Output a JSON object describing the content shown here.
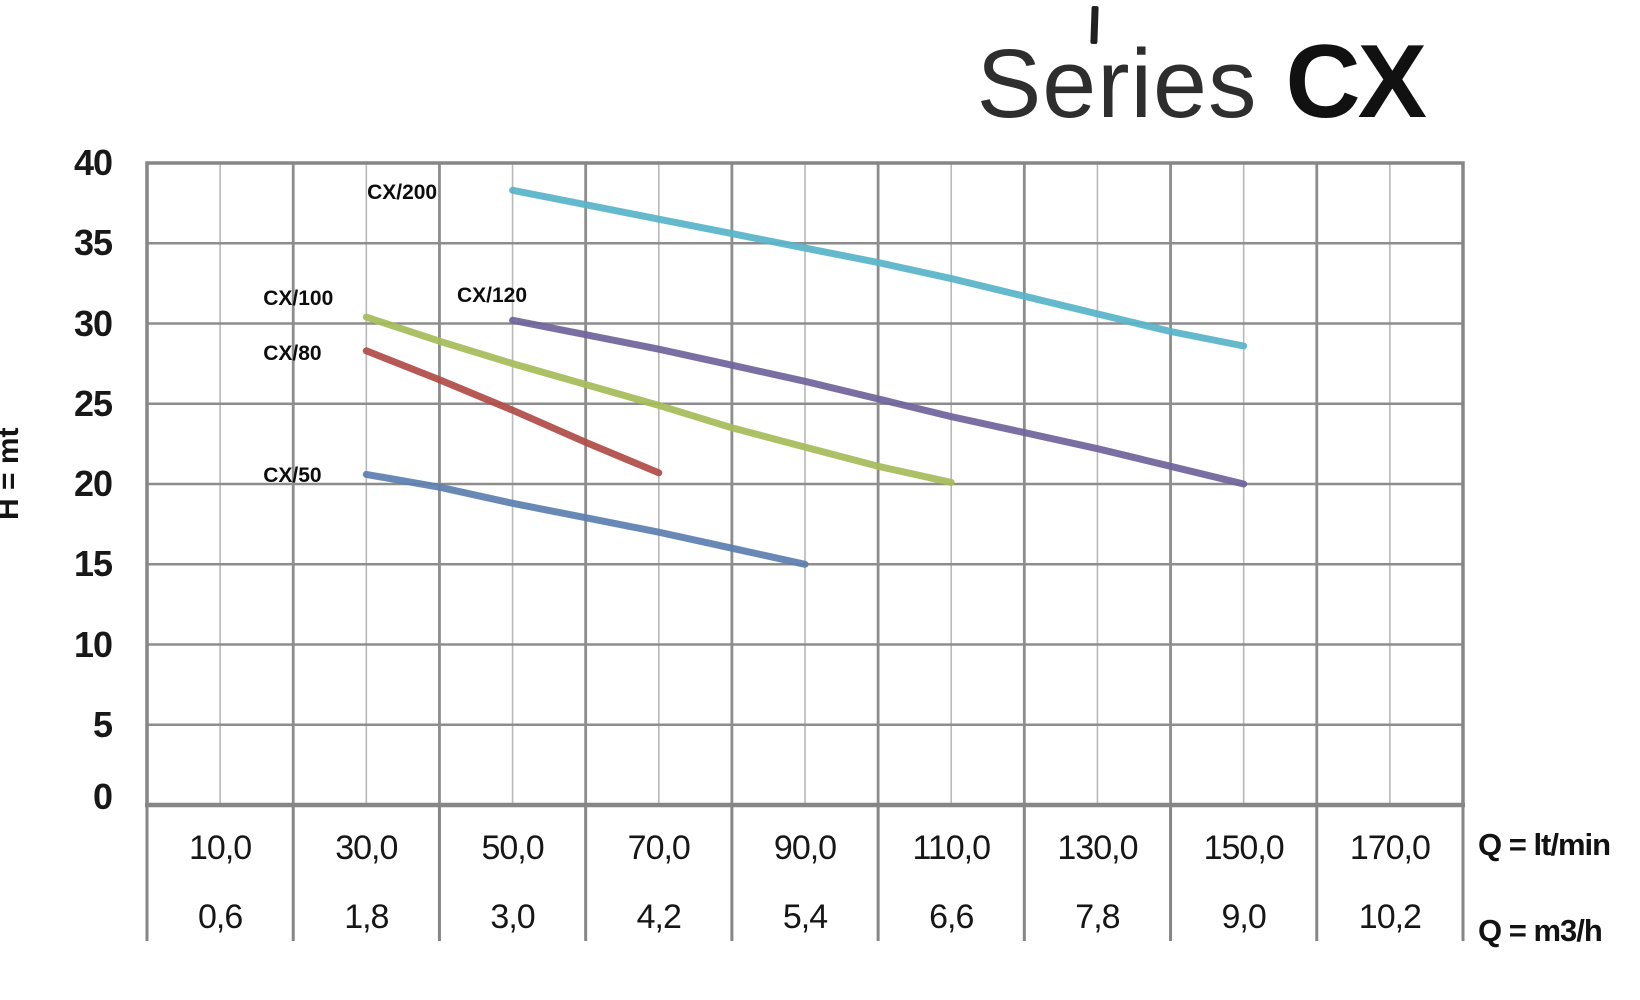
{
  "title": {
    "light": "Series",
    "bold": "CX"
  },
  "y_axis": {
    "label": "H = mt",
    "ticks": [
      40,
      35,
      30,
      25,
      20,
      15,
      10,
      5,
      0
    ]
  },
  "x_axis": {
    "unit_row1": "Q = lt/min",
    "unit_row2": "Q = m3/h",
    "row1": [
      "10,0",
      "30,0",
      "50,0",
      "70,0",
      "90,0",
      "110,0",
      "130,0",
      "150,0",
      "170,0"
    ],
    "row2": [
      "0,6",
      "1,8",
      "3,0",
      "4,2",
      "5,4",
      "6,6",
      "7,8",
      "9,0",
      "10,2"
    ]
  },
  "colors": {
    "grid_major": "#8D8D8D",
    "grid_minor": "#B8B8B8",
    "frame": "#868686",
    "text": "#1b1b1b"
  },
  "chart_data": {
    "type": "line",
    "title": "Series CX",
    "xlabel": "Q = lt/min",
    "xlabel_secondary": "Q = m3/h",
    "ylabel": "H = mt",
    "xlim": [
      0,
      180
    ],
    "ylim": [
      0,
      40
    ],
    "x_major_step": 20,
    "x_minor_step": 10,
    "y_step": 5,
    "grid": true,
    "legend_position": "inline-labels",
    "x_ticks_lt_min": [
      10,
      30,
      50,
      70,
      90,
      110,
      130,
      150,
      170
    ],
    "x_ticks_m3_h": [
      0.6,
      1.8,
      3.0,
      4.2,
      5.4,
      6.6,
      7.8,
      9.0,
      10.2
    ],
    "series": [
      {
        "name": "CX/200",
        "color": "#58B5C8",
        "label_anchor": {
          "q": 30.1,
          "h": 38.1
        },
        "points": [
          [
            50,
            38.3
          ],
          [
            60,
            37.4
          ],
          [
            70,
            36.5
          ],
          [
            80,
            35.6
          ],
          [
            90,
            34.7
          ],
          [
            100,
            33.8
          ],
          [
            110,
            32.8
          ],
          [
            120,
            31.7
          ],
          [
            130,
            30.6
          ],
          [
            140,
            29.5
          ],
          [
            150,
            28.6
          ]
        ]
      },
      {
        "name": "CX/120",
        "color": "#71639B",
        "label_anchor": {
          "q": 42.4,
          "h": 31.7
        },
        "points": [
          [
            50,
            30.2
          ],
          [
            60,
            29.3
          ],
          [
            70,
            28.4
          ],
          [
            80,
            27.4
          ],
          [
            90,
            26.4
          ],
          [
            100,
            25.3
          ],
          [
            110,
            24.2
          ],
          [
            120,
            23.2
          ],
          [
            130,
            22.2
          ],
          [
            140,
            21.1
          ],
          [
            150,
            20.0
          ]
        ]
      },
      {
        "name": "CX/100",
        "color": "#A6BC59",
        "label_anchor": {
          "q": 15.9,
          "h": 31.5
        },
        "points": [
          [
            30,
            30.4
          ],
          [
            40,
            28.9
          ],
          [
            50,
            27.5
          ],
          [
            60,
            26.2
          ],
          [
            70,
            24.9
          ],
          [
            80,
            23.5
          ],
          [
            90,
            22.3
          ],
          [
            100,
            21.1
          ],
          [
            110,
            20.1
          ]
        ]
      },
      {
        "name": "CX/80",
        "color": "#B04B47",
        "label_anchor": {
          "q": 15.9,
          "h": 28.1
        },
        "points": [
          [
            30,
            28.3
          ],
          [
            40,
            26.5
          ],
          [
            50,
            24.6
          ],
          [
            60,
            22.6
          ],
          [
            70,
            20.7
          ]
        ]
      },
      {
        "name": "CX/50",
        "color": "#5D80AF",
        "label_anchor": {
          "q": 15.9,
          "h": 20.5
        },
        "points": [
          [
            30,
            20.6
          ],
          [
            40,
            19.8
          ],
          [
            50,
            18.8
          ],
          [
            60,
            17.9
          ],
          [
            70,
            17.0
          ],
          [
            80,
            16.0
          ],
          [
            90,
            15.0
          ]
        ]
      }
    ]
  }
}
